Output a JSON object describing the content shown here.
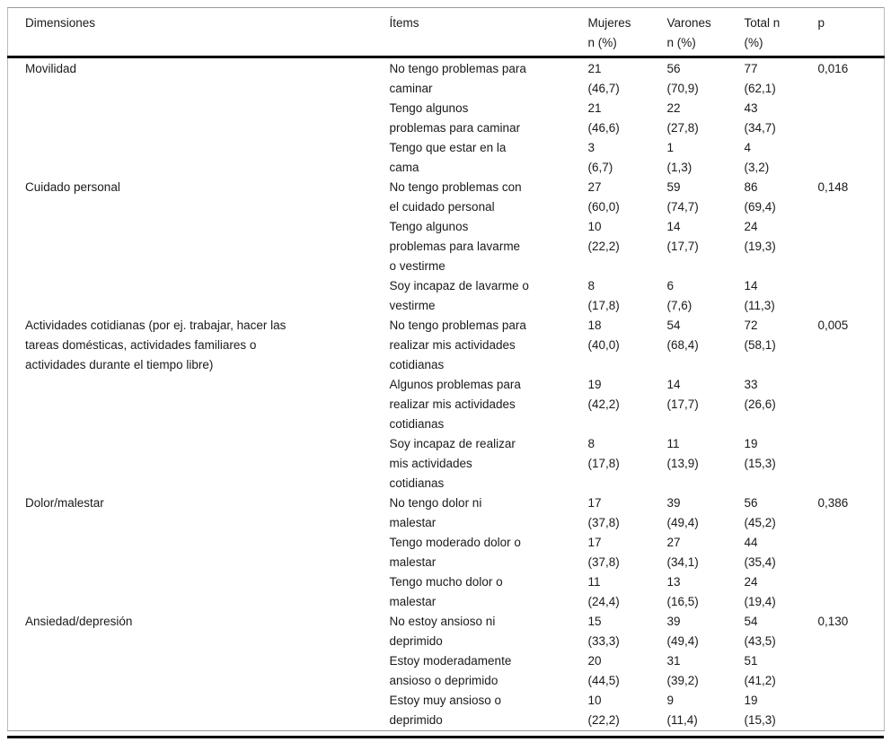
{
  "colors": {
    "background": "#ffffff",
    "text": "#1a1a1a",
    "rule_thin": "#9a9a9a",
    "rule_thick": "#000000"
  },
  "table": {
    "headers": {
      "dimensiones": "Dimensiones",
      "items": "Ítems",
      "mujeres": "Mujeres\nn (%)",
      "varones": "Varones\nn (%)",
      "total": "Total n\n(%)",
      "p": "p"
    },
    "sections": [
      {
        "dimension": "Movilidad",
        "p": "0,016",
        "items": [
          {
            "label": "No tengo problemas para\ncaminar",
            "mujeres": "21\n(46,7)",
            "varones": "56\n(70,9)",
            "total": "77\n(62,1)"
          },
          {
            "label": "Tengo algunos\nproblemas para caminar",
            "mujeres": "21\n(46,6)",
            "varones": "22\n(27,8)",
            "total": "43\n(34,7)"
          },
          {
            "label": "Tengo que estar en la\ncama",
            "mujeres": "3\n(6,7)",
            "varones": "1\n(1,3)",
            "total": "4\n(3,2)"
          }
        ]
      },
      {
        "dimension": "Cuidado personal",
        "p": "0,148",
        "items": [
          {
            "label": "No tengo problemas con\nel cuidado personal",
            "mujeres": "27\n(60,0)",
            "varones": "59\n(74,7)",
            "total": "86\n(69,4)"
          },
          {
            "label": "Tengo algunos\nproblemas para lavarme\no vestirme",
            "mujeres": "10\n(22,2)",
            "varones": "14\n(17,7)",
            "total": "24\n(19,3)"
          },
          {
            "label": "Soy incapaz de lavarme o\nvestirme",
            "mujeres": "8\n(17,8)",
            "varones": "6\n(7,6)",
            "total": "14\n(11,3)"
          }
        ]
      },
      {
        "dimension": "Actividades cotidianas (por ej. trabajar, hacer las\ntareas domésticas, actividades familiares o\nactividades durante el tiempo libre)",
        "p": "0,005",
        "items": [
          {
            "label": "No tengo problemas para\nrealizar mis actividades\ncotidianas",
            "mujeres": "18\n(40,0)",
            "varones": "54\n(68,4)",
            "total": "72\n(58,1)"
          },
          {
            "label": "Algunos problemas para\nrealizar mis actividades\ncotidianas",
            "mujeres": "19\n(42,2)",
            "varones": "14\n(17,7)",
            "total": "33\n(26,6)"
          },
          {
            "label": "Soy incapaz de realizar\nmis actividades\ncotidianas",
            "mujeres": "8\n(17,8)",
            "varones": "11\n(13,9)",
            "total": "19\n(15,3)"
          }
        ]
      },
      {
        "dimension": "Dolor/malestar",
        "p": "0,386",
        "items": [
          {
            "label": "No tengo dolor ni\nmalestar",
            "mujeres": "17\n(37,8)",
            "varones": "39\n(49,4)",
            "total": "56\n(45,2)"
          },
          {
            "label": "Tengo moderado dolor o\nmalestar",
            "mujeres": "17\n(37,8)",
            "varones": "27\n(34,1)",
            "total": "44\n(35,4)"
          },
          {
            "label": "Tengo mucho dolor o\nmalestar",
            "mujeres": "11\n(24,4)",
            "varones": "13\n(16,5)",
            "total": "24\n(19,4)"
          }
        ]
      },
      {
        "dimension": "Ansiedad/depresión",
        "p": "0,130",
        "items": [
          {
            "label": "No estoy ansioso ni\ndeprimido",
            "mujeres": "15\n(33,3)",
            "varones": "39\n(49,4)",
            "total": "54\n(43,5)"
          },
          {
            "label": "Estoy moderadamente\nansioso o deprimido",
            "mujeres": "20\n(44,5)",
            "varones": "31\n(39,2)",
            "total": "51\n(41,2)"
          },
          {
            "label": "Estoy muy ansioso o\ndeprimido",
            "mujeres": "10\n(22,2)",
            "varones": "9\n(11,4)",
            "total": "19\n(15,3)"
          }
        ]
      }
    ]
  }
}
